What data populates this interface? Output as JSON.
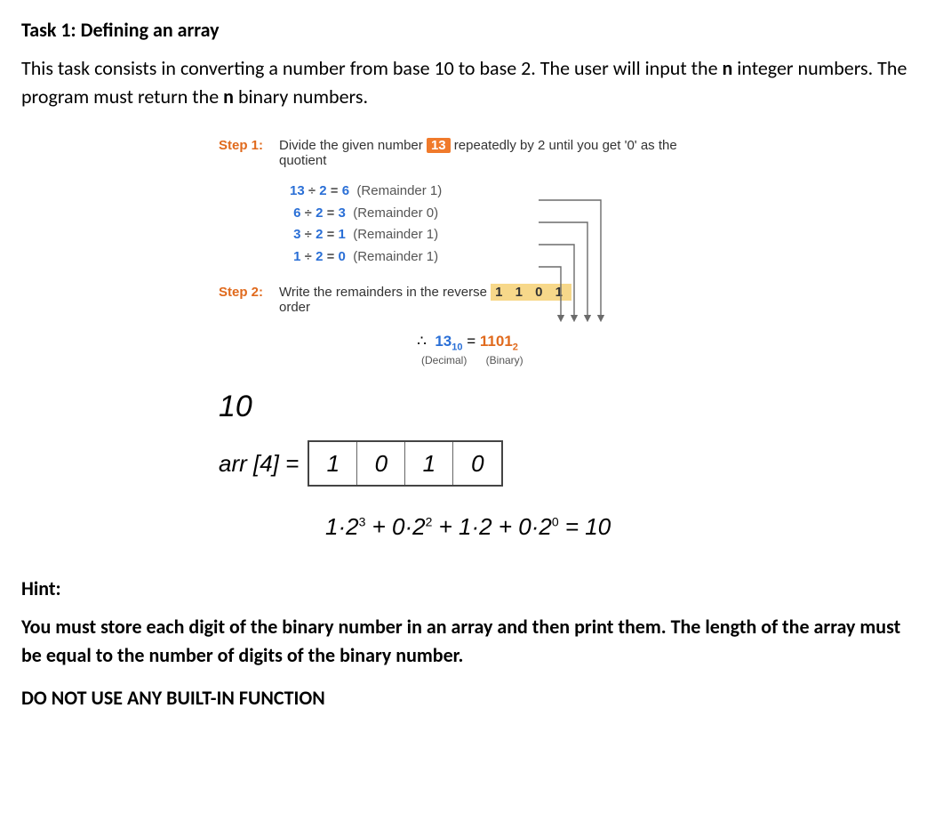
{
  "title": "Task 1: Defining an array",
  "intro_pre": "This task consists in converting a number from base 10 to base 2. The user will input the ",
  "intro_n1": "n",
  "intro_mid": " integer numbers. The program must return the ",
  "intro_n2": "n",
  "intro_post": " binary numbers.",
  "step1_label": "Step 1:",
  "step1_text_pre": "Divide the given number ",
  "step1_num": "13",
  "step1_text_post": " repeatedly by 2 until you get '0' as the quotient",
  "divisions": [
    {
      "a": "13",
      "b": "2",
      "q": "6",
      "r": "(Remainder 1)"
    },
    {
      "a": "6",
      "b": "2",
      "q": "3",
      "r": "(Remainder 0)"
    },
    {
      "a": "3",
      "b": "2",
      "q": "1",
      "r": "(Remainder 1)"
    },
    {
      "a": "1",
      "b": "2",
      "q": "0",
      "r": "(Remainder 1)"
    }
  ],
  "step2_label": "Step 2:",
  "step2_text_pre": "Write the remainders in the reverse ",
  "step2_result": "1 1 0 1",
  "step2_text_post": "order",
  "concl_therefore": "∴",
  "concl_dec": "13",
  "concl_dec_sub": "10",
  "concl_eq": " = ",
  "concl_bin": "1101",
  "concl_bin_sub": "2",
  "concl_dec_lbl": "(Decimal)",
  "concl_bin_lbl": "(Binary)",
  "hand_ten": "10",
  "arr_label": "arr [4] =",
  "arr_cells": [
    "1",
    "0",
    "1",
    "0"
  ],
  "formula_html": "1·2<sup>3</sup> + 0·2<sup>2</sup> + 1·2 + 0·2<sup>0</sup> = 10",
  "hint_label": "Hint:",
  "hint_body": "You must store each digit of the binary number in an array and then print them. The length of the array must be equal to the number of digits of the binary number.",
  "no_builtin": "DO NOT USE ANY BUILT-IN FUNCTION",
  "colors": {
    "step_label": "#e06a1d",
    "number_highlight_bg": "#f07a2b",
    "reverse_highlight_bg": "#f7d88a",
    "blue_num": "#2a6fd6",
    "arrow": "#6b6b6b",
    "text": "#000000",
    "bg": "#ffffff"
  }
}
